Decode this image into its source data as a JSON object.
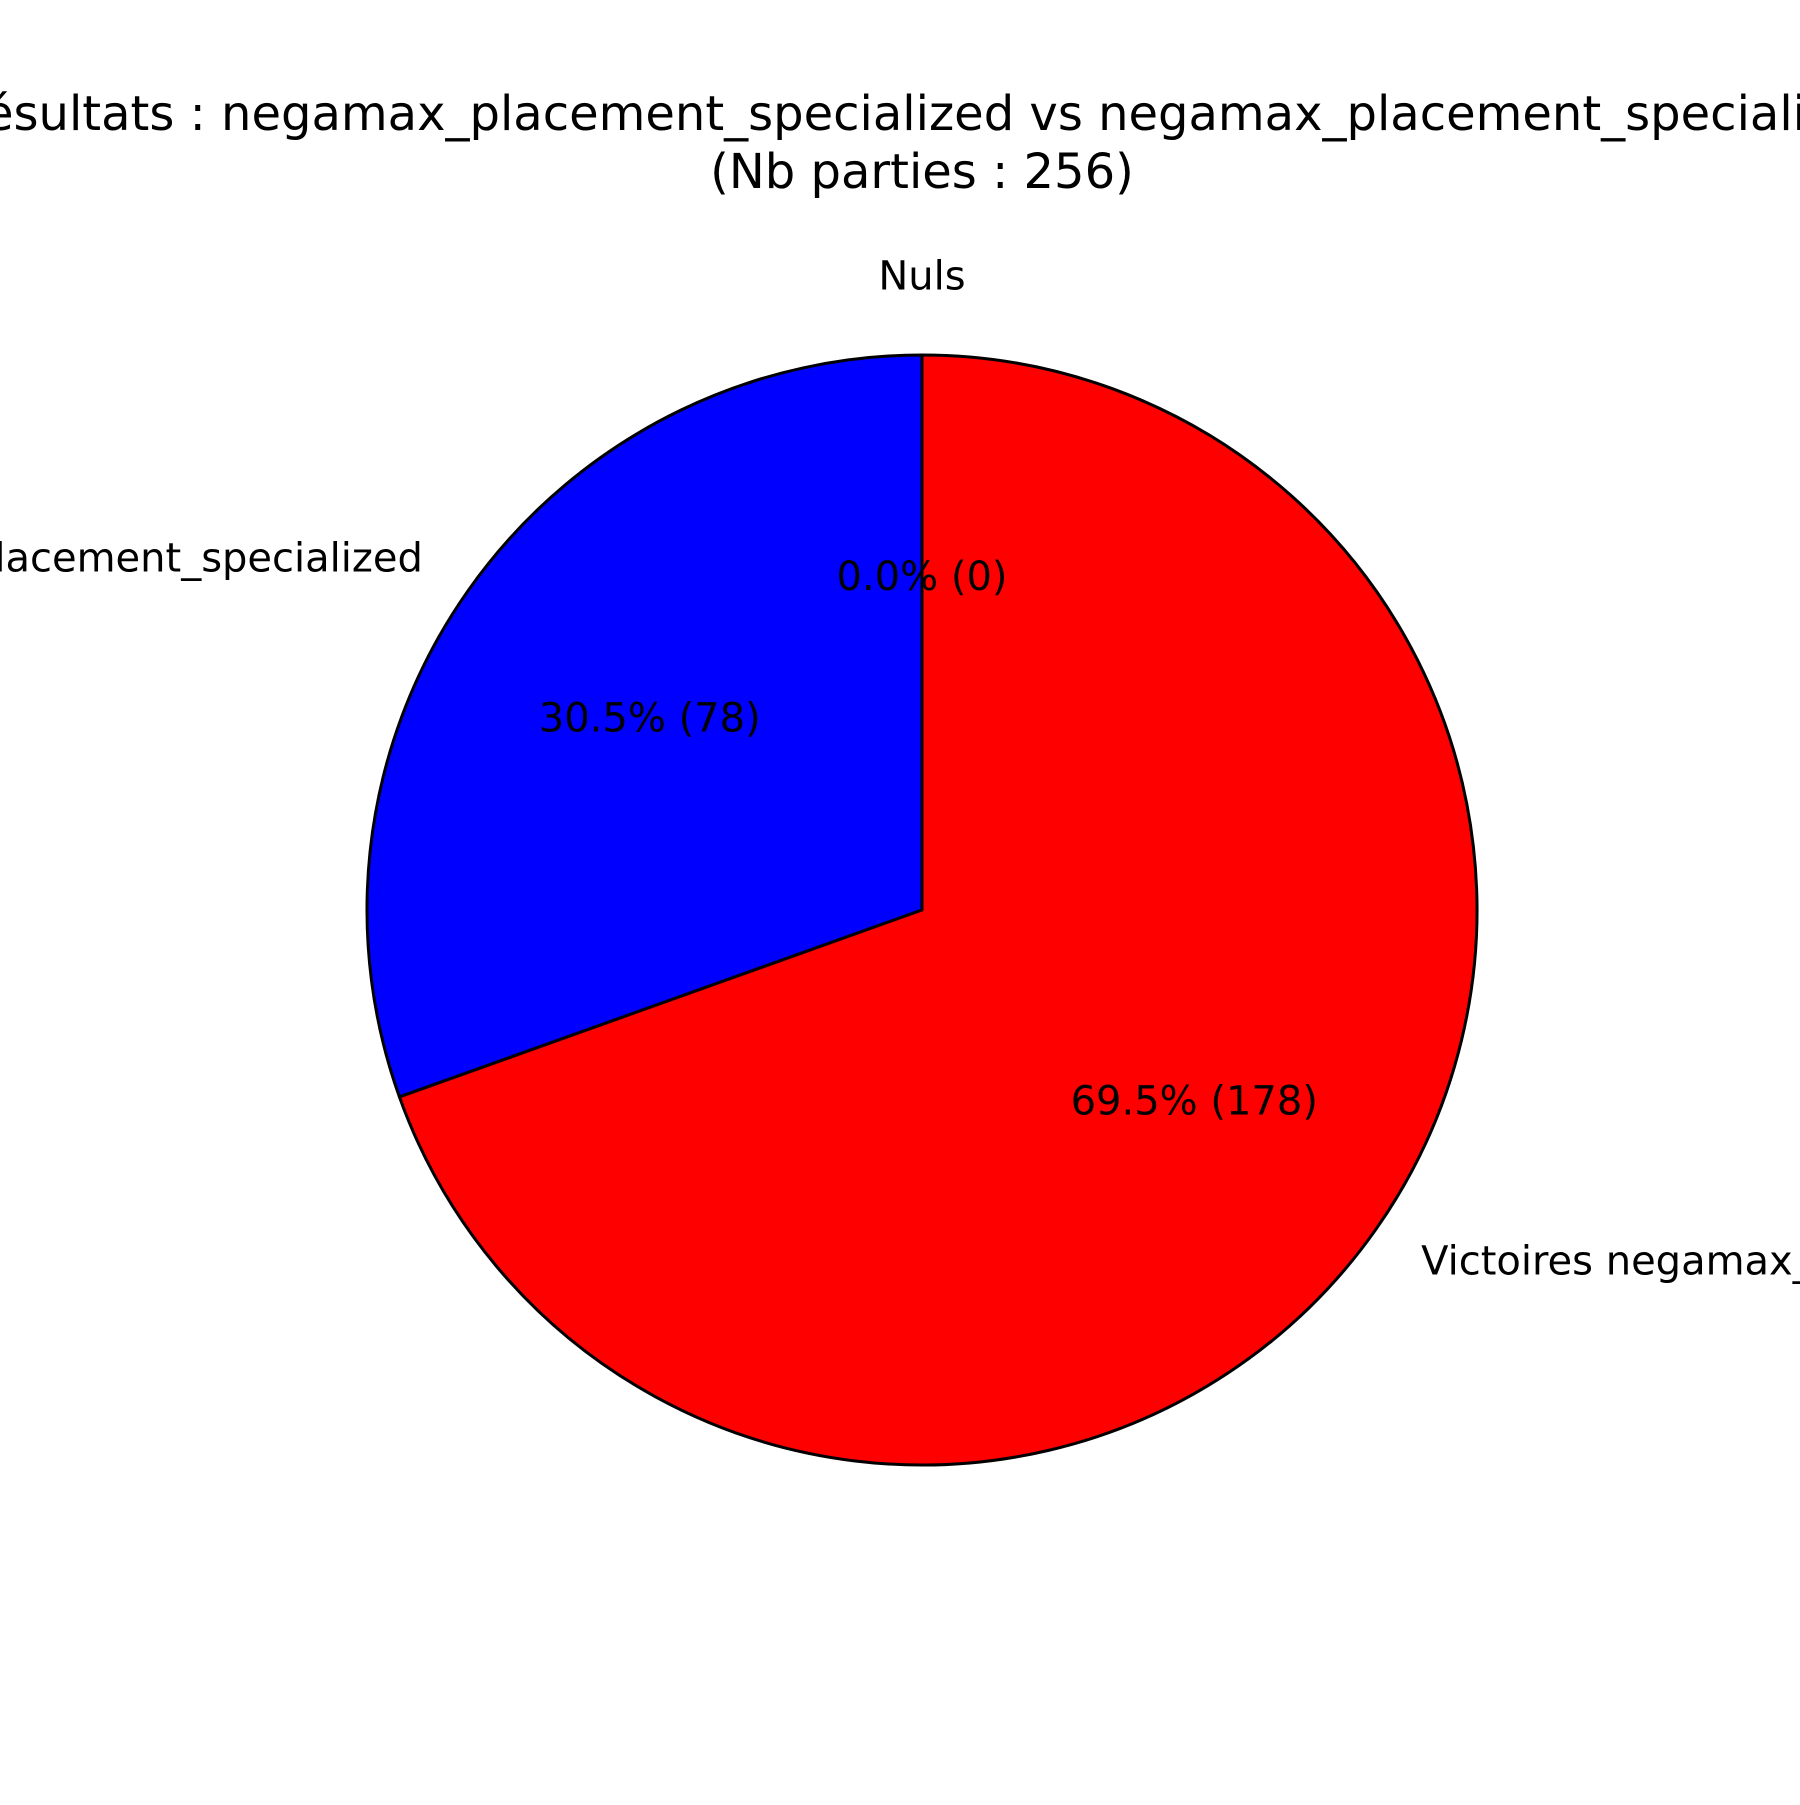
{
  "chart_data": {
    "type": "pie",
    "title_lines": [
      "Résultats : negamax_placement_specialized vs negamax_placement_specialized",
      "(Nb parties : 256)"
    ],
    "slices": [
      {
        "label": "Nuls",
        "value": 0,
        "percent_label": "0.0% (0)",
        "color": "#00ff00"
      },
      {
        "label": "Victoires negamax_placement_specialized",
        "value": 78,
        "percent_label": "30.5% (78)",
        "color": "#0000ff"
      },
      {
        "label": "Victoires negamax_placement_specialized",
        "value": 178,
        "percent_label": "69.5% (178)",
        "color": "#ff0000"
      }
    ],
    "start_angle_deg": 90,
    "direction": "counterclockwise",
    "legend": "none",
    "edge_color": "#000000"
  }
}
